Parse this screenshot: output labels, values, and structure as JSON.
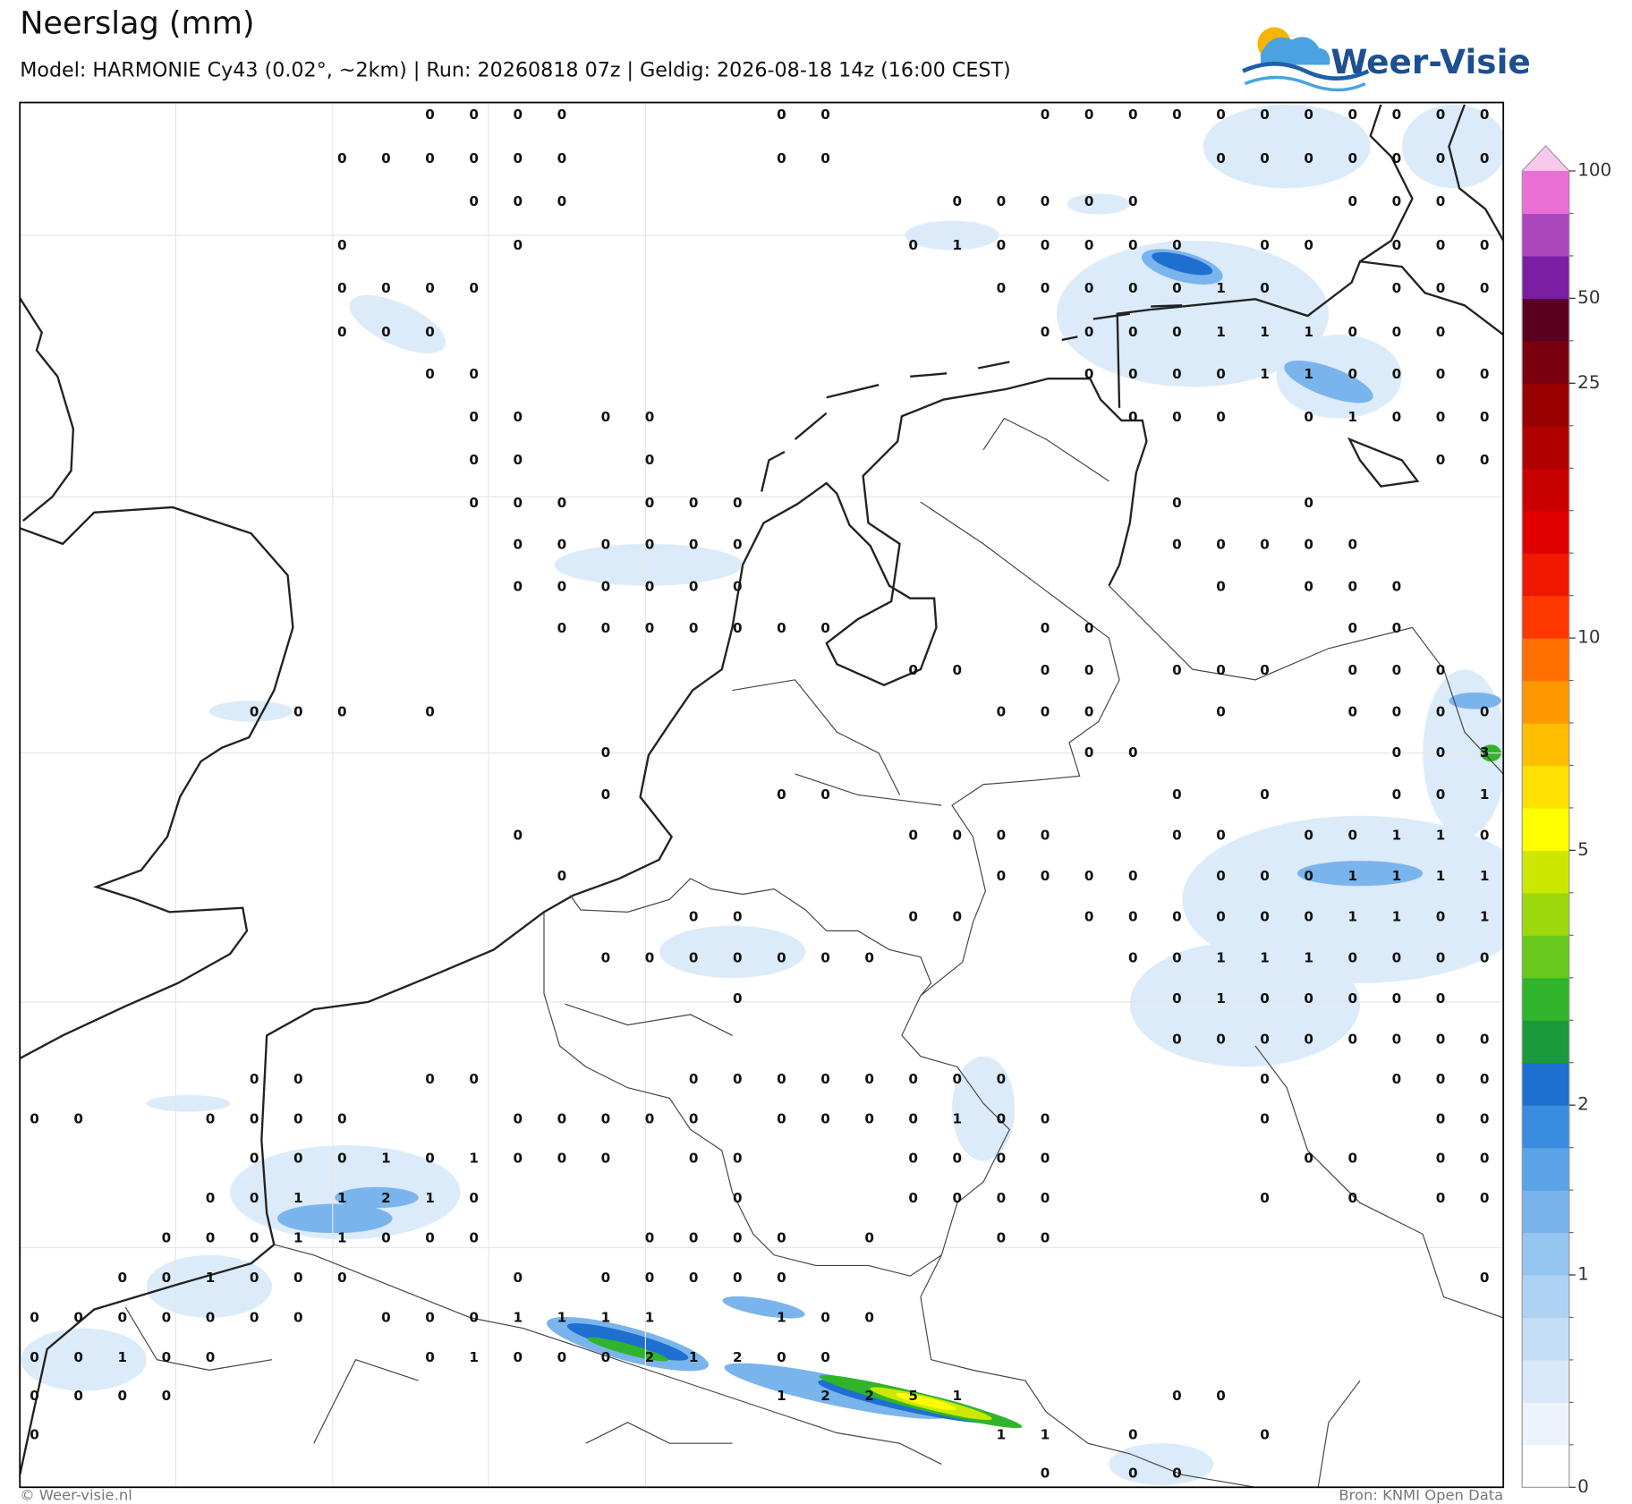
{
  "header": {
    "title": "Neerslag (mm)",
    "subtitle": "Model: HARMONIE Cy43 (0.02°, ~2km)  |  Run: 20260818 07z  |  Geldig: 2026-08-18 14z (16:00 CEST)",
    "logo": "Weer-Visie"
  },
  "footer": {
    "left": "© Weer-visie.nl",
    "right": "Bron: KNMI Open Data"
  },
  "colorbar": {
    "ticks": [
      0,
      1,
      2,
      5,
      10,
      25,
      50,
      100
    ],
    "colors": [
      "#ffffff",
      "#ebf3fc",
      "#d9e9f9",
      "#c4def7",
      "#add2f4",
      "#94c4f0",
      "#7ab4ec",
      "#5aa3e6",
      "#3a8ce0",
      "#1e6fd0",
      "#1a9a3a",
      "#30b42c",
      "#68c81c",
      "#9cd80c",
      "#cce800",
      "#ffff00",
      "#ffe000",
      "#ffbe00",
      "#ff9800",
      "#ff7000",
      "#ff3800",
      "#f01800",
      "#e00000",
      "#c80000",
      "#b00000",
      "#980000",
      "#7a0010",
      "#5c0020",
      "#7b1fa2",
      "#ab47bc",
      "#e96fd4",
      "#f8c8ec"
    ]
  },
  "map": {
    "grid": [
      [
        null,
        null,
        null,
        null,
        null,
        null,
        null,
        null,
        null,
        0,
        0,
        0,
        0,
        null,
        null,
        null,
        null,
        0,
        0,
        null,
        null,
        null,
        null,
        0,
        0,
        0,
        0,
        0,
        0,
        0,
        0,
        0,
        0,
        0
      ],
      [
        null,
        null,
        null,
        null,
        null,
        null,
        null,
        0,
        0,
        0,
        0,
        0,
        0,
        null,
        null,
        null,
        null,
        0,
        0,
        null,
        null,
        null,
        null,
        null,
        null,
        null,
        null,
        0,
        0,
        0,
        0,
        0,
        0,
        0
      ],
      [
        null,
        null,
        null,
        null,
        null,
        null,
        null,
        null,
        null,
        null,
        0,
        0,
        0,
        null,
        null,
        null,
        null,
        null,
        null,
        null,
        null,
        0,
        0,
        0,
        0,
        0,
        null,
        null,
        null,
        null,
        0,
        0,
        0,
        null
      ],
      [
        null,
        null,
        null,
        null,
        null,
        null,
        null,
        0,
        null,
        null,
        null,
        0,
        null,
        null,
        null,
        null,
        null,
        null,
        null,
        null,
        0,
        1,
        0,
        0,
        0,
        0,
        0,
        null,
        0,
        0,
        null,
        0,
        0,
        0
      ],
      [
        null,
        null,
        null,
        null,
        null,
        null,
        null,
        0,
        0,
        0,
        0,
        null,
        null,
        null,
        null,
        null,
        null,
        null,
        null,
        null,
        null,
        null,
        0,
        0,
        0,
        0,
        0,
        1,
        0,
        null,
        null,
        0,
        0,
        0
      ],
      [
        null,
        null,
        null,
        null,
        null,
        null,
        null,
        0,
        0,
        0,
        null,
        null,
        null,
        null,
        null,
        null,
        null,
        null,
        null,
        null,
        null,
        null,
        null,
        0,
        0,
        0,
        0,
        1,
        1,
        1,
        0,
        0,
        0,
        null
      ],
      [
        null,
        null,
        null,
        null,
        null,
        null,
        null,
        null,
        null,
        0,
        0,
        null,
        null,
        null,
        null,
        null,
        null,
        null,
        null,
        null,
        null,
        null,
        null,
        null,
        0,
        0,
        0,
        0,
        1,
        1,
        0,
        0,
        0,
        0
      ],
      [
        null,
        null,
        null,
        null,
        null,
        null,
        null,
        null,
        null,
        null,
        0,
        0,
        null,
        0,
        0,
        null,
        null,
        null,
        null,
        null,
        null,
        null,
        null,
        null,
        null,
        0,
        0,
        0,
        null,
        0,
        1,
        0,
        0,
        0
      ],
      [
        null,
        null,
        null,
        null,
        null,
        null,
        null,
        null,
        null,
        null,
        0,
        0,
        null,
        null,
        0,
        null,
        null,
        null,
        null,
        null,
        null,
        null,
        null,
        null,
        null,
        null,
        null,
        null,
        null,
        null,
        null,
        null,
        0,
        0
      ],
      [
        null,
        null,
        null,
        null,
        null,
        null,
        null,
        null,
        null,
        null,
        0,
        0,
        0,
        null,
        0,
        0,
        0,
        null,
        null,
        null,
        null,
        null,
        null,
        null,
        null,
        null,
        0,
        null,
        null,
        0,
        null,
        null,
        null,
        null
      ],
      [
        null,
        null,
        null,
        null,
        null,
        null,
        null,
        null,
        null,
        null,
        null,
        0,
        0,
        0,
        0,
        0,
        0,
        null,
        null,
        null,
        null,
        null,
        null,
        null,
        null,
        null,
        0,
        0,
        0,
        0,
        0,
        null,
        null,
        null
      ],
      [
        null,
        null,
        null,
        null,
        null,
        null,
        null,
        null,
        null,
        null,
        null,
        0,
        0,
        0,
        0,
        0,
        0,
        null,
        null,
        null,
        null,
        null,
        null,
        null,
        null,
        null,
        null,
        0,
        null,
        0,
        0,
        0,
        null,
        null
      ],
      [
        null,
        null,
        null,
        null,
        null,
        null,
        null,
        null,
        null,
        null,
        null,
        null,
        0,
        0,
        0,
        0,
        0,
        0,
        0,
        null,
        null,
        null,
        null,
        0,
        0,
        null,
        null,
        null,
        null,
        null,
        0,
        0,
        null,
        null
      ],
      [
        null,
        null,
        null,
        null,
        null,
        null,
        null,
        null,
        null,
        null,
        null,
        null,
        null,
        null,
        null,
        null,
        null,
        null,
        null,
        null,
        0,
        0,
        null,
        0,
        0,
        null,
        0,
        0,
        0,
        null,
        0,
        0,
        0,
        null
      ],
      [
        null,
        null,
        null,
        null,
        null,
        0,
        0,
        0,
        null,
        0,
        null,
        null,
        null,
        null,
        null,
        null,
        null,
        null,
        null,
        null,
        null,
        null,
        0,
        0,
        0,
        null,
        null,
        0,
        null,
        null,
        0,
        0,
        0,
        0
      ],
      [
        null,
        null,
        null,
        null,
        null,
        null,
        null,
        null,
        null,
        null,
        null,
        null,
        null,
        0,
        null,
        null,
        null,
        null,
        null,
        null,
        null,
        null,
        null,
        null,
        0,
        0,
        null,
        null,
        null,
        null,
        null,
        0,
        0,
        3
      ],
      [
        null,
        null,
        null,
        null,
        null,
        null,
        null,
        null,
        null,
        null,
        null,
        null,
        null,
        0,
        null,
        null,
        null,
        0,
        0,
        null,
        null,
        null,
        null,
        null,
        null,
        null,
        0,
        null,
        0,
        null,
        null,
        0,
        0,
        1
      ],
      [
        null,
        null,
        null,
        null,
        null,
        null,
        null,
        null,
        null,
        null,
        null,
        0,
        null,
        null,
        null,
        null,
        null,
        null,
        null,
        null,
        0,
        0,
        0,
        0,
        null,
        null,
        0,
        0,
        null,
        0,
        0,
        1,
        1,
        0
      ],
      [
        null,
        null,
        null,
        null,
        null,
        null,
        null,
        null,
        null,
        null,
        null,
        null,
        0,
        null,
        null,
        null,
        null,
        null,
        null,
        null,
        null,
        null,
        0,
        0,
        0,
        0,
        null,
        0,
        0,
        0,
        1,
        1,
        1,
        1
      ],
      [
        null,
        null,
        null,
        null,
        null,
        null,
        null,
        null,
        null,
        null,
        null,
        null,
        null,
        null,
        null,
        0,
        0,
        null,
        null,
        null,
        0,
        0,
        null,
        null,
        0,
        0,
        0,
        0,
        0,
        0,
        1,
        1,
        0,
        1
      ],
      [
        null,
        null,
        null,
        null,
        null,
        null,
        null,
        null,
        null,
        null,
        null,
        null,
        null,
        0,
        0,
        0,
        0,
        0,
        0,
        0,
        null,
        null,
        null,
        null,
        null,
        0,
        0,
        1,
        1,
        1,
        0,
        0,
        0,
        0
      ],
      [
        null,
        null,
        null,
        null,
        null,
        null,
        null,
        null,
        null,
        null,
        null,
        null,
        null,
        null,
        null,
        null,
        0,
        null,
        null,
        null,
        null,
        null,
        null,
        null,
        null,
        null,
        0,
        1,
        0,
        0,
        0,
        0,
        0,
        null
      ],
      [
        null,
        null,
        null,
        null,
        null,
        null,
        null,
        null,
        null,
        null,
        null,
        null,
        null,
        null,
        null,
        null,
        null,
        null,
        null,
        null,
        null,
        null,
        null,
        null,
        null,
        null,
        0,
        0,
        0,
        0,
        0,
        0,
        0,
        0
      ],
      [
        null,
        null,
        null,
        null,
        null,
        0,
        0,
        null,
        null,
        0,
        0,
        null,
        null,
        null,
        null,
        0,
        0,
        0,
        0,
        0,
        0,
        0,
        0,
        null,
        null,
        null,
        null,
        null,
        0,
        null,
        null,
        0,
        0,
        0
      ],
      [
        0,
        0,
        null,
        null,
        0,
        0,
        0,
        0,
        null,
        null,
        null,
        0,
        0,
        0,
        0,
        0,
        null,
        0,
        0,
        0,
        0,
        1,
        0,
        0,
        null,
        null,
        null,
        null,
        0,
        null,
        null,
        null,
        0,
        0
      ],
      [
        null,
        null,
        null,
        null,
        null,
        0,
        0,
        0,
        1,
        0,
        1,
        0,
        0,
        0,
        null,
        0,
        0,
        null,
        null,
        null,
        0,
        0,
        0,
        0,
        null,
        null,
        null,
        null,
        null,
        0,
        0,
        null,
        0,
        0
      ],
      [
        null,
        null,
        null,
        null,
        0,
        0,
        1,
        1,
        2,
        1,
        0,
        null,
        null,
        null,
        null,
        null,
        0,
        null,
        null,
        null,
        0,
        0,
        0,
        0,
        null,
        null,
        null,
        null,
        0,
        null,
        0,
        null,
        0,
        0
      ],
      [
        null,
        null,
        null,
        0,
        0,
        0,
        1,
        1,
        0,
        0,
        0,
        null,
        null,
        null,
        0,
        0,
        0,
        0,
        null,
        0,
        null,
        null,
        0,
        0,
        null,
        null,
        null,
        null,
        null,
        null,
        null,
        null,
        null,
        null
      ],
      [
        null,
        null,
        0,
        0,
        1,
        0,
        0,
        0,
        null,
        null,
        null,
        0,
        null,
        0,
        0,
        0,
        0,
        0,
        null,
        null,
        null,
        null,
        null,
        null,
        null,
        null,
        null,
        null,
        null,
        null,
        null,
        null,
        null,
        0
      ],
      [
        0,
        0,
        0,
        0,
        0,
        0,
        0,
        null,
        0,
        0,
        0,
        1,
        1,
        1,
        1,
        null,
        null,
        1,
        0,
        0,
        null,
        null,
        null,
        null,
        null,
        null,
        null,
        null,
        null,
        null,
        null,
        null,
        null,
        null
      ],
      [
        0,
        0,
        1,
        0,
        0,
        null,
        null,
        null,
        null,
        0,
        1,
        0,
        0,
        0,
        2,
        1,
        2,
        0,
        0,
        null,
        null,
        null,
        null,
        null,
        null,
        null,
        null,
        null,
        null,
        null,
        null,
        null,
        null,
        null
      ],
      [
        0,
        0,
        0,
        0,
        null,
        null,
        null,
        null,
        null,
        null,
        null,
        null,
        null,
        null,
        null,
        null,
        null,
        1,
        2,
        2,
        5,
        1,
        null,
        null,
        null,
        null,
        0,
        0,
        null,
        null,
        null,
        null,
        null,
        null
      ],
      [
        0,
        null,
        null,
        null,
        null,
        null,
        null,
        null,
        null,
        null,
        null,
        null,
        null,
        null,
        null,
        null,
        null,
        null,
        null,
        null,
        null,
        null,
        1,
        1,
        null,
        0,
        null,
        null,
        0,
        null,
        null,
        null,
        null,
        null
      ],
      [
        null,
        null,
        null,
        null,
        null,
        null,
        null,
        null,
        null,
        null,
        null,
        null,
        null,
        null,
        null,
        null,
        null,
        null,
        null,
        null,
        null,
        null,
        null,
        0,
        null,
        0,
        0,
        null,
        null,
        null,
        null,
        null,
        null,
        null
      ]
    ]
  }
}
